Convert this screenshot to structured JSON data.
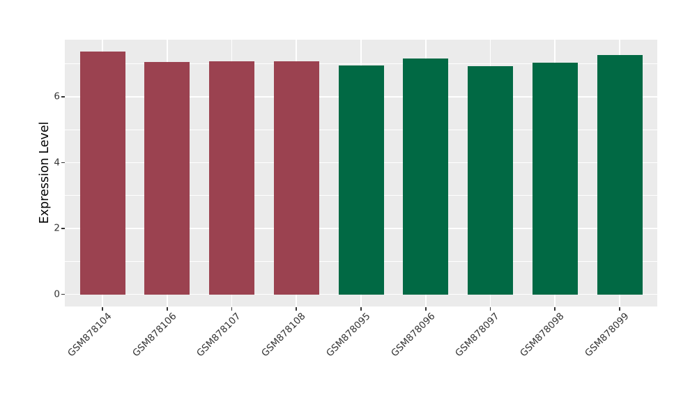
{
  "figure": {
    "panel_background": "#ebebeb",
    "grid_color": "#ffffff",
    "tick_color": "#333333",
    "tick_text_color": "#333333",
    "axis_title_color": "#000000",
    "group_colors": {
      "maroon": "#9b4250",
      "green": "#016944"
    }
  },
  "chart_data": {
    "type": "bar",
    "title": "",
    "xlabel": "",
    "ylabel": "Expression Level",
    "categories": [
      "GSM878104",
      "GSM878106",
      "GSM878107",
      "GSM878108",
      "GSM878095",
      "GSM878096",
      "GSM878097",
      "GSM878098",
      "GSM878099"
    ],
    "values": [
      7.37,
      7.06,
      7.08,
      7.08,
      6.96,
      7.16,
      6.94,
      7.05,
      7.27
    ],
    "bar_colors": [
      "#9b4250",
      "#9b4250",
      "#9b4250",
      "#9b4250",
      "#016944",
      "#016944",
      "#016944",
      "#016944",
      "#016944"
    ],
    "ylim": [
      0,
      7.74
    ],
    "y_major_ticks": [
      0,
      2,
      4,
      6
    ],
    "y_minor_ticks": [
      1,
      3,
      5,
      7
    ],
    "y_tick_labels": [
      "0",
      "2",
      "4",
      "6"
    ],
    "x_tick_rotation": 45,
    "grid": true,
    "legend": false
  }
}
